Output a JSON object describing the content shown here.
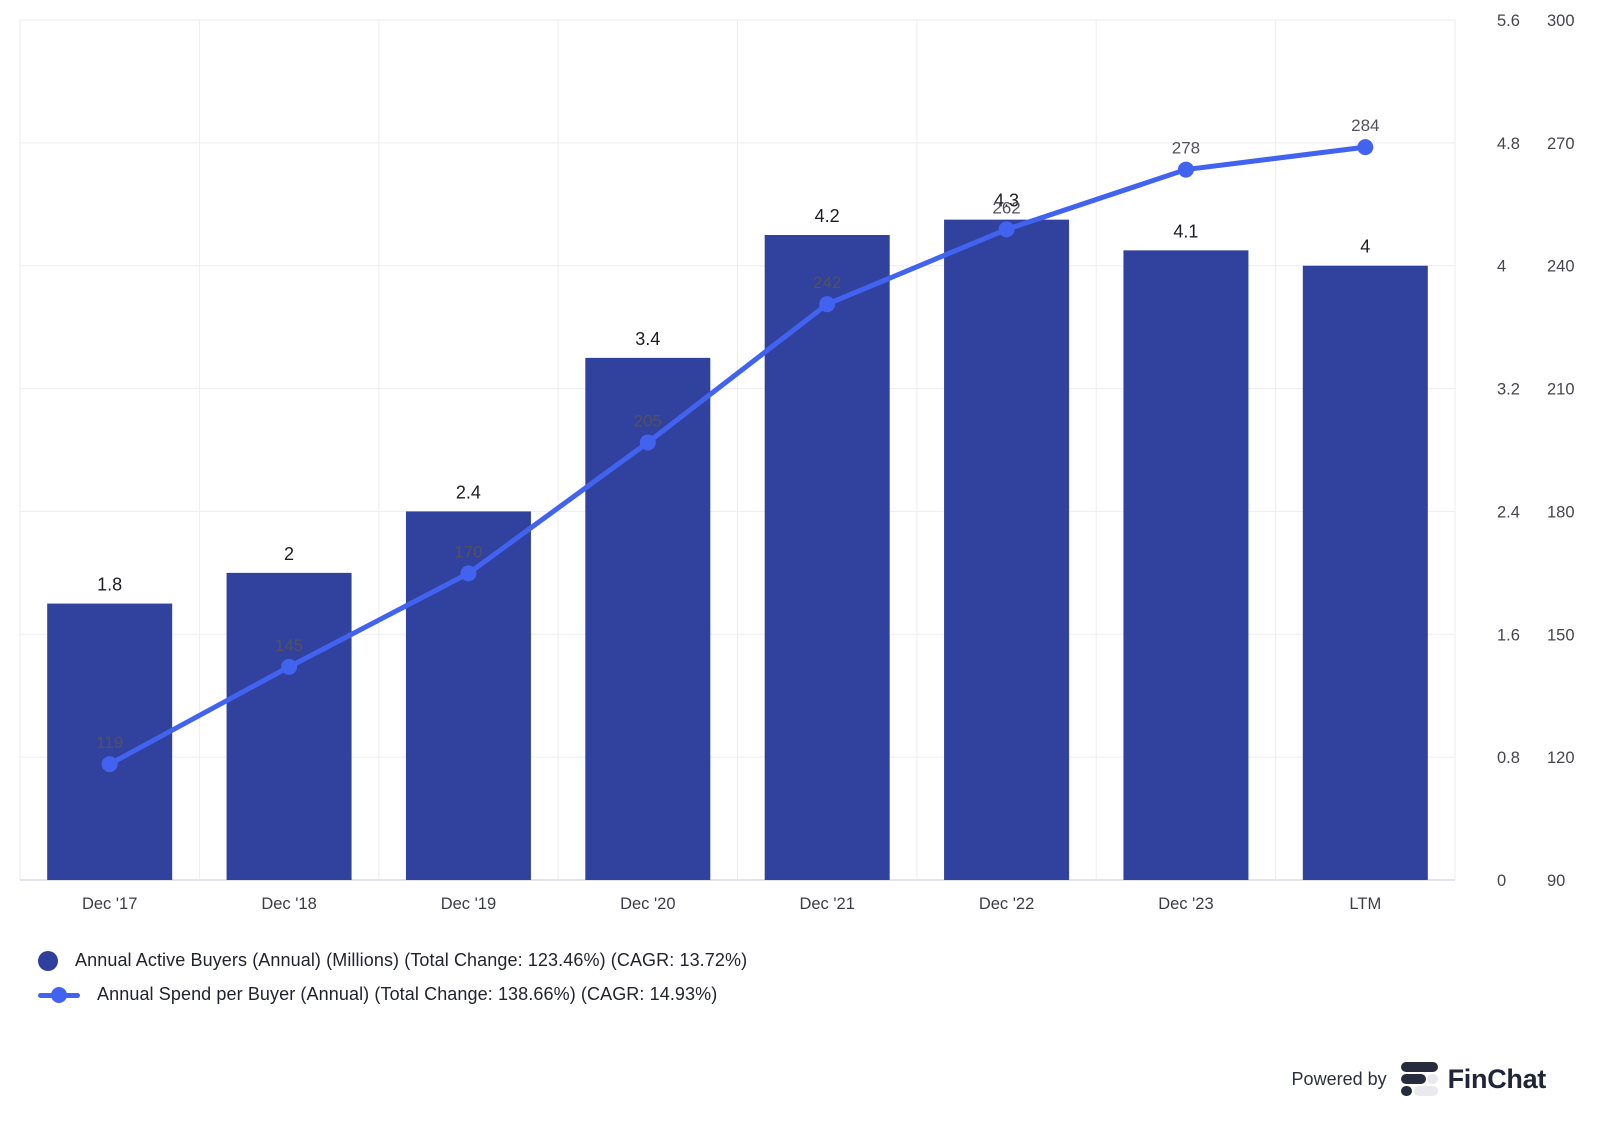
{
  "chart_data": {
    "type": "combo",
    "categories": [
      "Dec '17",
      "Dec '18",
      "Dec '19",
      "Dec '20",
      "Dec '21",
      "Dec '22",
      "Dec '23",
      "LTM"
    ],
    "series": [
      {
        "name": "Annual Active Buyers (Annual) (Millions)",
        "type": "bar",
        "color": "#31419e",
        "values": [
          1.8,
          2,
          2.4,
          3.4,
          4.2,
          4.3,
          4.1,
          4
        ]
      },
      {
        "name": "Annual Spend per Buyer (Annual)",
        "type": "line",
        "color": "#4263f0",
        "values": [
          119,
          145,
          170,
          205,
          242,
          262,
          278,
          284
        ]
      }
    ],
    "bar_axis": {
      "side": "right-inner",
      "ticks": [
        "5.6",
        "4.8",
        "4",
        "3.2",
        "2.4",
        "1.6",
        "0.8",
        "0"
      ],
      "range": [
        0,
        5.6
      ]
    },
    "line_axis": {
      "side": "right-outer",
      "ticks": [
        "300",
        "270",
        "240",
        "210",
        "180",
        "150",
        "120",
        "90"
      ],
      "range": [
        88,
        318
      ]
    },
    "grid": true,
    "legend_position": "bottom-left",
    "colors": {
      "bar_fill": "#31419e",
      "line_stroke": "#4263f0",
      "gridline": "#ededf1",
      "axis_line": "#e3e3e9",
      "tick_text": "#45454e",
      "bar_label_text": "#1c1c22",
      "line_label_text": "#52525c"
    }
  },
  "legend": {
    "items": [
      {
        "label": "Annual Active Buyers (Annual) (Millions) (Total Change: 123.46%) (CAGR: 13.72%)",
        "marker": "filled-circle",
        "color": "#2e3f9e"
      },
      {
        "label": "Annual Spend per Buyer (Annual) (Total Change: 138.66%) (CAGR: 14.93%)",
        "marker": "line-with-dot",
        "color": "#4263f0"
      }
    ]
  },
  "footer": {
    "powered_by": "Powered by",
    "brand": "FinChat"
  }
}
